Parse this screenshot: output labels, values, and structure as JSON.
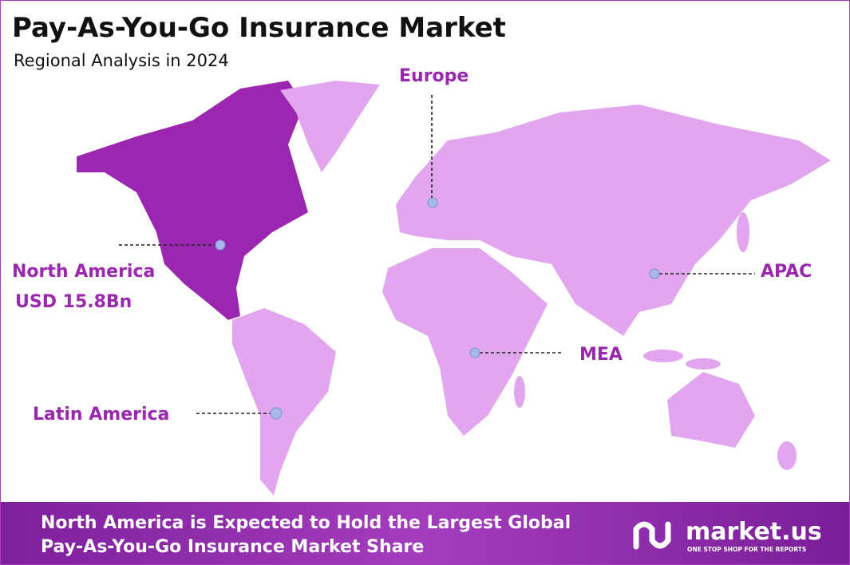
{
  "header": {
    "title": "Pay-As-You-Go Insurance Market",
    "subtitle": "Regional Analysis in 2024"
  },
  "map": {
    "regions": [
      {
        "label": "North America",
        "value": "USD 15.8Bn"
      },
      {
        "label": "Europe"
      },
      {
        "label": "APAC"
      },
      {
        "label": "MEA"
      },
      {
        "label": "Latin America"
      }
    ]
  },
  "footer": {
    "lines": [
      "North America is Expected to Hold the Largest Global",
      "Pay-As-You-Go Insurance Market Share"
    ],
    "logo": {
      "name": "market.us",
      "tagline": "ONE STOP SHOP FOR THE REPORTS"
    }
  }
}
